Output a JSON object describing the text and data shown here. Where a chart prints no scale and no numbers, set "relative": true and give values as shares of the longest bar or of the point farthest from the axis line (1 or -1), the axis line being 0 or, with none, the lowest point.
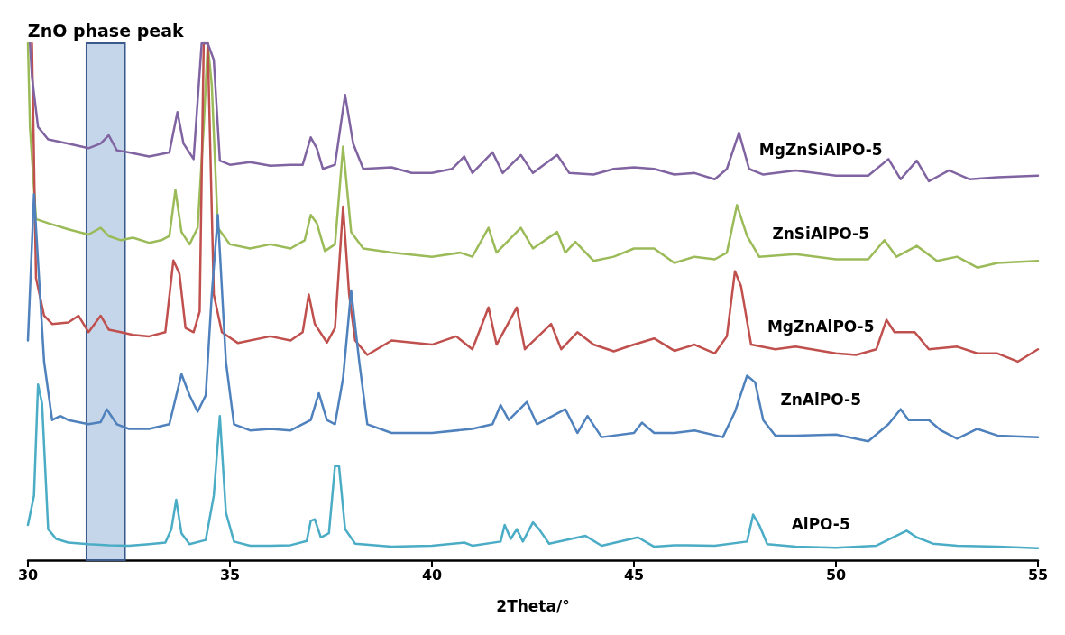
{
  "chart_data": {
    "type": "line",
    "relative": true,
    "xlabel": "2Theta/°",
    "xlim": [
      30,
      55
    ],
    "xticks": [
      30,
      35,
      40,
      45,
      50,
      55
    ],
    "grid": false,
    "legend": false,
    "marker": "none",
    "line_style": "solid",
    "bands": [
      {
        "axis": "x",
        "from": 31.45,
        "to": 32.4,
        "label": "ZnO phase peak",
        "color": "#c5d5ea"
      }
    ],
    "series": [
      {
        "name": "MgZnSiAlPO-5",
        "color": "#8064a2",
        "x": [
          30.05,
          30.1,
          30.25,
          30.5,
          31,
          31.5,
          31.8,
          32,
          32.2,
          32.5,
          33,
          33.5,
          33.7,
          33.85,
          34.1,
          34.3,
          34.45,
          34.6,
          34.75,
          35,
          35.5,
          36,
          36.5,
          36.8,
          37,
          37.15,
          37.3,
          37.6,
          37.85,
          38.05,
          38.3,
          39,
          39.5,
          40,
          40.5,
          40.8,
          41,
          41.5,
          41.75,
          42.2,
          42.5,
          43.1,
          43.4,
          44,
          44.5,
          45,
          45.5,
          46,
          46.5,
          47,
          47.3,
          47.6,
          47.85,
          48.2,
          49,
          50,
          50.8,
          51.3,
          51.6,
          52,
          52.3,
          52.8,
          53.3,
          54,
          55
        ],
        "values": [
          1,
          0.935,
          0.838,
          0.814,
          0.806,
          0.797,
          0.806,
          0.822,
          0.793,
          0.789,
          0.781,
          0.789,
          0.867,
          0.806,
          0.776,
          1,
          1,
          0.968,
          0.773,
          0.765,
          0.77,
          0.763,
          0.765,
          0.765,
          0.818,
          0.797,
          0.757,
          0.765,
          0.9,
          0.806,
          0.757,
          0.76,
          0.749,
          0.749,
          0.757,
          0.781,
          0.749,
          0.789,
          0.749,
          0.784,
          0.749,
          0.784,
          0.749,
          0.746,
          0.757,
          0.76,
          0.757,
          0.746,
          0.749,
          0.737,
          0.757,
          0.827,
          0.757,
          0.746,
          0.754,
          0.744,
          0.744,
          0.776,
          0.737,
          0.773,
          0.733,
          0.754,
          0.737,
          0.741,
          0.744
        ]
      },
      {
        "name": "ZnSiAlPO-5",
        "color": "#9bbb59",
        "x": [
          30,
          30.05,
          30.2,
          30.5,
          31,
          31.5,
          31.8,
          32,
          32.3,
          32.6,
          33,
          33.3,
          33.5,
          33.65,
          33.8,
          34,
          34.2,
          34.35,
          34.45,
          34.55,
          34.7,
          35,
          35.5,
          36,
          36.5,
          36.85,
          37,
          37.15,
          37.35,
          37.6,
          37.8,
          38,
          38.3,
          39,
          40,
          40.7,
          41,
          41.4,
          41.6,
          42.2,
          42.5,
          43.1,
          43.3,
          43.55,
          44,
          44.5,
          45,
          45.5,
          46,
          46.5,
          47,
          47.3,
          47.55,
          47.8,
          48.1,
          49,
          50,
          50.8,
          51.2,
          51.5,
          52,
          52.5,
          53,
          53.5,
          54,
          55
        ],
        "values": [
          1,
          0.838,
          0.66,
          0.652,
          0.64,
          0.63,
          0.643,
          0.627,
          0.619,
          0.624,
          0.614,
          0.619,
          0.627,
          0.716,
          0.635,
          0.611,
          0.643,
          0.838,
          1,
          0.919,
          0.643,
          0.611,
          0.603,
          0.611,
          0.603,
          0.619,
          0.668,
          0.652,
          0.598,
          0.611,
          0.8,
          0.635,
          0.603,
          0.595,
          0.587,
          0.595,
          0.587,
          0.643,
          0.595,
          0.643,
          0.603,
          0.635,
          0.595,
          0.616,
          0.579,
          0.587,
          0.603,
          0.603,
          0.575,
          0.587,
          0.582,
          0.595,
          0.687,
          0.627,
          0.587,
          0.592,
          0.582,
          0.582,
          0.619,
          0.587,
          0.608,
          0.579,
          0.587,
          0.566,
          0.575,
          0.579
        ]
      },
      {
        "name": "MgZnAlPO-5",
        "color": "#c0504d",
        "x": [
          30.1,
          30.2,
          30.4,
          30.6,
          31,
          31.25,
          31.5,
          31.8,
          32,
          32.3,
          32.6,
          33,
          33.4,
          33.6,
          33.75,
          33.9,
          34.1,
          34.25,
          34.35,
          34.45,
          34.6,
          34.8,
          35.2,
          36,
          36.5,
          36.8,
          36.95,
          37.1,
          37.4,
          37.6,
          37.8,
          37.95,
          38.1,
          38.4,
          39,
          40,
          40.6,
          41,
          41.4,
          41.6,
          42.1,
          42.3,
          42.95,
          43.2,
          43.6,
          44,
          44.5,
          45,
          45.5,
          46,
          46.5,
          47,
          47.3,
          47.5,
          47.65,
          47.9,
          48.5,
          49,
          50,
          50.5,
          51,
          51.25,
          51.45,
          51.95,
          52.3,
          53,
          53.5,
          54,
          54.5,
          55
        ],
        "values": [
          1,
          0.546,
          0.473,
          0.457,
          0.46,
          0.473,
          0.441,
          0.473,
          0.446,
          0.441,
          0.436,
          0.433,
          0.441,
          0.58,
          0.554,
          0.449,
          0.441,
          0.481,
          1,
          1,
          0.514,
          0.441,
          0.42,
          0.433,
          0.425,
          0.441,
          0.514,
          0.457,
          0.421,
          0.449,
          0.684,
          0.514,
          0.425,
          0.397,
          0.425,
          0.417,
          0.433,
          0.408,
          0.489,
          0.417,
          0.489,
          0.408,
          0.457,
          0.408,
          0.441,
          0.417,
          0.404,
          0.417,
          0.429,
          0.405,
          0.417,
          0.4,
          0.433,
          0.559,
          0.53,
          0.417,
          0.408,
          0.413,
          0.4,
          0.397,
          0.408,
          0.465,
          0.441,
          0.441,
          0.408,
          0.413,
          0.4,
          0.4,
          0.384,
          0.408
        ]
      },
      {
        "name": "ZnAlPO-5",
        "color": "#4f81bd",
        "x": [
          30,
          30.15,
          30.4,
          30.6,
          30.8,
          31,
          31.5,
          31.8,
          31.95,
          32.2,
          32.5,
          33,
          33.5,
          33.8,
          34,
          34.2,
          34.4,
          34.55,
          34.7,
          34.9,
          35.1,
          35.5,
          36,
          36.5,
          37,
          37.2,
          37.4,
          37.6,
          37.8,
          38,
          38.2,
          38.4,
          39,
          40,
          41,
          41.5,
          41.7,
          41.9,
          42.35,
          42.6,
          43.3,
          43.6,
          43.85,
          44.2,
          45,
          45.2,
          45.5,
          46,
          46.5,
          47.2,
          47.5,
          47.8,
          48,
          48.2,
          48.5,
          49,
          50,
          50.8,
          51.3,
          51.6,
          51.8,
          52.3,
          52.6,
          53,
          53.5,
          54,
          55
        ],
        "values": [
          0.425,
          0.708,
          0.384,
          0.271,
          0.279,
          0.271,
          0.263,
          0.267,
          0.292,
          0.263,
          0.254,
          0.254,
          0.263,
          0.36,
          0.319,
          0.287,
          0.319,
          0.514,
          0.668,
          0.384,
          0.263,
          0.251,
          0.254,
          0.251,
          0.271,
          0.323,
          0.271,
          0.263,
          0.352,
          0.522,
          0.384,
          0.263,
          0.246,
          0.246,
          0.254,
          0.263,
          0.3,
          0.271,
          0.306,
          0.263,
          0.292,
          0.246,
          0.279,
          0.238,
          0.246,
          0.266,
          0.246,
          0.246,
          0.251,
          0.238,
          0.287,
          0.357,
          0.344,
          0.271,
          0.241,
          0.241,
          0.243,
          0.23,
          0.263,
          0.292,
          0.271,
          0.271,
          0.251,
          0.235,
          0.254,
          0.241,
          0.238
        ]
      },
      {
        "name": "AlPO-5",
        "color": "#4bacc6",
        "x": [
          30,
          30.15,
          30.25,
          30.35,
          30.5,
          30.7,
          31,
          31.5,
          32,
          32.5,
          33,
          33.4,
          33.55,
          33.67,
          33.8,
          34,
          34.4,
          34.6,
          34.75,
          34.9,
          35.1,
          35.5,
          36,
          36.5,
          36.9,
          37,
          37.1,
          37.25,
          37.45,
          37.6,
          37.7,
          37.85,
          38.1,
          39,
          40,
          40.8,
          41,
          41.7,
          41.8,
          41.95,
          42.1,
          42.25,
          42.5,
          42.65,
          42.9,
          43.8,
          44.2,
          45.1,
          45.5,
          46,
          47,
          47.8,
          47.95,
          48.1,
          48.3,
          49,
          50,
          51,
          51.75,
          52,
          52.4,
          53,
          54,
          55
        ],
        "values": [
          0.068,
          0.125,
          0.34,
          0.303,
          0.06,
          0.041,
          0.034,
          0.031,
          0.029,
          0.028,
          0.031,
          0.034,
          0.06,
          0.117,
          0.052,
          0.031,
          0.039,
          0.125,
          0.279,
          0.092,
          0.036,
          0.028,
          0.028,
          0.029,
          0.037,
          0.076,
          0.079,
          0.044,
          0.052,
          0.182,
          0.182,
          0.06,
          0.032,
          0.026,
          0.028,
          0.034,
          0.028,
          0.036,
          0.068,
          0.041,
          0.06,
          0.036,
          0.073,
          0.06,
          0.032,
          0.047,
          0.028,
          0.044,
          0.026,
          0.029,
          0.028,
          0.036,
          0.088,
          0.068,
          0.031,
          0.026,
          0.024,
          0.028,
          0.057,
          0.044,
          0.032,
          0.028,
          0.026,
          0.023
        ]
      }
    ]
  }
}
